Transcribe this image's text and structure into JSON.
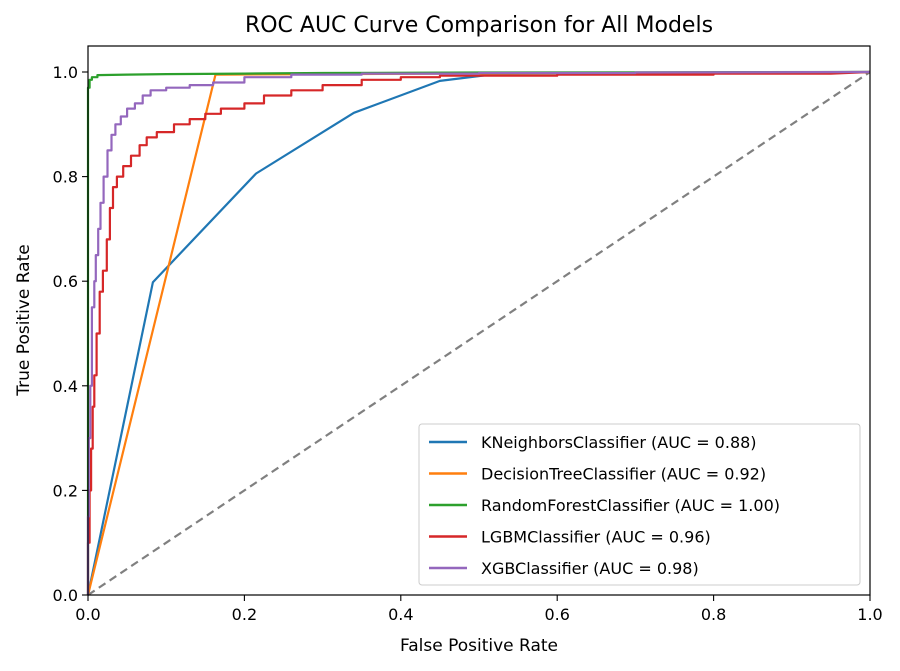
{
  "chart_data": {
    "type": "line",
    "title": "ROC AUC Curve Comparison for All Models",
    "xlabel": "False Positive Rate",
    "ylabel": "True Positive Rate",
    "xlim": [
      0.0,
      1.0
    ],
    "ylim": [
      0.0,
      1.05
    ],
    "grid": false,
    "legend_position": "lower-right",
    "x_ticks": [
      "0.0",
      "0.2",
      "0.4",
      "0.6",
      "0.8",
      "1.0"
    ],
    "y_ticks": [
      "0.0",
      "0.2",
      "0.4",
      "0.6",
      "0.8",
      "1.0"
    ],
    "reference_line": {
      "x": [
        0.0,
        1.0
      ],
      "y": [
        0.0,
        1.0
      ],
      "color": "#808080",
      "style": "dashed"
    },
    "series": [
      {
        "name": "KNeighborsClassifier (AUC = 0.88)",
        "color": "#1f77b4",
        "x": [
          0.0,
          0.083,
          0.215,
          0.34,
          0.45,
          0.52,
          0.65,
          1.0
        ],
        "y": [
          0.0,
          0.598,
          0.806,
          0.922,
          0.983,
          0.996,
          0.998,
          1.0
        ]
      },
      {
        "name": "DecisionTreeClassifier (AUC = 0.92)",
        "color": "#ff7f0e",
        "x": [
          0.0,
          0.163,
          1.0
        ],
        "y": [
          0.0,
          0.995,
          1.0
        ]
      },
      {
        "name": "RandomForestClassifier (AUC = 1.00)",
        "color": "#2ca02c",
        "x": [
          0.0,
          0.0,
          0.002,
          0.002,
          0.005,
          0.005,
          0.012,
          0.012,
          0.05,
          0.1,
          0.2,
          0.3,
          0.5,
          1.0
        ],
        "y": [
          0.0,
          0.97,
          0.97,
          0.985,
          0.985,
          0.99,
          0.99,
          0.994,
          0.995,
          0.996,
          0.997,
          0.998,
          0.999,
          1.0
        ]
      },
      {
        "name": "LGBMClassifier (AUC = 0.96)",
        "color": "#d62728",
        "x": [
          0.0,
          0.0,
          0.002,
          0.002,
          0.004,
          0.004,
          0.006,
          0.006,
          0.008,
          0.008,
          0.011,
          0.011,
          0.015,
          0.015,
          0.019,
          0.019,
          0.024,
          0.024,
          0.028,
          0.028,
          0.032,
          0.032,
          0.037,
          0.037,
          0.045,
          0.045,
          0.055,
          0.055,
          0.066,
          0.066,
          0.075,
          0.075,
          0.088,
          0.088,
          0.11,
          0.11,
          0.13,
          0.13,
          0.15,
          0.15,
          0.17,
          0.17,
          0.2,
          0.2,
          0.225,
          0.225,
          0.26,
          0.26,
          0.3,
          0.3,
          0.35,
          0.35,
          0.4,
          0.4,
          0.45,
          0.45,
          0.6,
          0.6,
          0.8,
          0.8,
          0.95,
          1.0
        ],
        "y": [
          0.0,
          0.1,
          0.1,
          0.2,
          0.2,
          0.28,
          0.28,
          0.36,
          0.36,
          0.42,
          0.42,
          0.5,
          0.5,
          0.58,
          0.58,
          0.62,
          0.62,
          0.68,
          0.68,
          0.74,
          0.74,
          0.78,
          0.78,
          0.8,
          0.8,
          0.82,
          0.82,
          0.84,
          0.84,
          0.86,
          0.86,
          0.875,
          0.875,
          0.885,
          0.885,
          0.9,
          0.9,
          0.91,
          0.91,
          0.92,
          0.92,
          0.93,
          0.93,
          0.94,
          0.94,
          0.955,
          0.955,
          0.965,
          0.965,
          0.975,
          0.975,
          0.985,
          0.985,
          0.99,
          0.99,
          0.993,
          0.993,
          0.995,
          0.995,
          0.997,
          0.997,
          1.0
        ]
      },
      {
        "name": "XGBClassifier (AUC = 0.98)",
        "color": "#9467bd",
        "x": [
          0.0,
          0.0,
          0.001,
          0.001,
          0.003,
          0.003,
          0.005,
          0.005,
          0.008,
          0.008,
          0.01,
          0.01,
          0.013,
          0.013,
          0.016,
          0.016,
          0.02,
          0.02,
          0.025,
          0.025,
          0.03,
          0.03,
          0.035,
          0.035,
          0.042,
          0.042,
          0.05,
          0.05,
          0.06,
          0.06,
          0.07,
          0.07,
          0.08,
          0.08,
          0.1,
          0.1,
          0.13,
          0.13,
          0.16,
          0.16,
          0.2,
          0.2,
          0.26,
          0.26,
          0.35,
          0.35,
          0.5,
          0.5,
          0.7,
          0.7,
          1.0
        ],
        "y": [
          0.0,
          0.15,
          0.15,
          0.3,
          0.3,
          0.4,
          0.4,
          0.55,
          0.55,
          0.6,
          0.6,
          0.65,
          0.65,
          0.7,
          0.7,
          0.75,
          0.75,
          0.8,
          0.8,
          0.85,
          0.85,
          0.88,
          0.88,
          0.9,
          0.9,
          0.915,
          0.915,
          0.93,
          0.93,
          0.94,
          0.94,
          0.955,
          0.955,
          0.965,
          0.965,
          0.97,
          0.97,
          0.975,
          0.975,
          0.98,
          0.98,
          0.99,
          0.99,
          0.995,
          0.995,
          0.997,
          0.997,
          0.998,
          0.998,
          0.999,
          1.0
        ]
      }
    ]
  }
}
